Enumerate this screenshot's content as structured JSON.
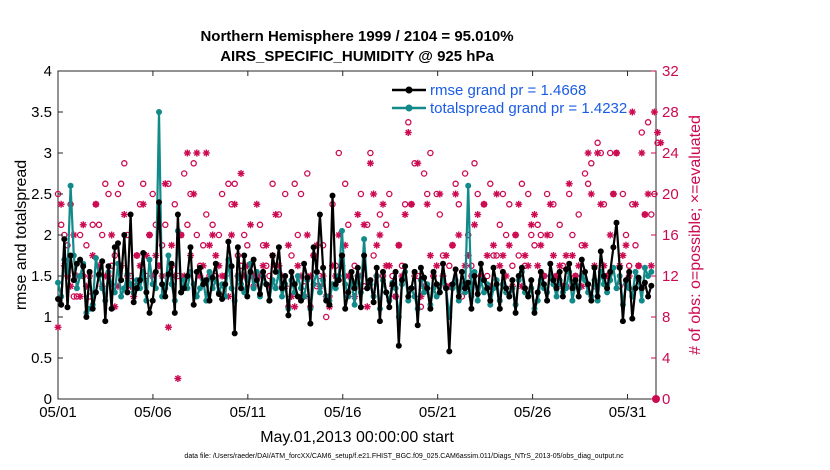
{
  "chart_data": {
    "type": "line",
    "title": "Northern Hemisphere 1999 / 2104 = 95.010%",
    "subtitle": "AIRS_SPECIFIC_HUMIDITY @ 925 hPa",
    "xlabel": "May.01,2013 00:00:00 start",
    "ylabel": "rmse and totalspread",
    "y2label": "# of obs: o=possible; ×=evaluated",
    "footnote": "data file: /Users/raeder/DAI/ATM_forcXX/CAM6_setup/f.e21.FHIST_BGC.f09_025.CAM6assim.011/Diags_NTrS_2013-05/obs_diag_output.nc",
    "xlim": [
      0,
      31.5
    ],
    "ylim": [
      0,
      4
    ],
    "y2lim": [
      0,
      32
    ],
    "x_ticks": [
      0,
      5,
      10,
      15,
      20,
      25,
      30
    ],
    "x_tick_labels": [
      "05/01",
      "05/06",
      "05/11",
      "05/16",
      "05/21",
      "05/26",
      "05/31"
    ],
    "y_ticks": [
      "0",
      "0.5",
      "1",
      "1.5",
      "2",
      "2.5",
      "3",
      "3.5",
      "4"
    ],
    "y2_ticks": [
      "0",
      "4",
      "8",
      "12",
      "16",
      "20",
      "24",
      "28",
      "32"
    ],
    "series": [
      {
        "name": "rmse grand pr = 1.4668",
        "color": "#000000",
        "values": [
          1.22,
          1.15,
          1.95,
          1.12,
          1.75,
          1.45,
          1.65,
          1.7,
          1.62,
          1.0,
          1.55,
          1.1,
          1.3,
          1.52,
          1.68,
          0.95,
          1.62,
          1.1,
          1.85,
          1.9,
          1.45,
          2.0,
          1.3,
          2.25,
          1.18,
          1.35,
          1.45,
          1.78,
          1.3,
          1.05,
          1.2,
          1.55,
          2.4,
          1.4,
          1.25,
          1.52,
          1.65,
          1.05,
          2.25,
          1.3,
          1.35,
          1.5,
          1.85,
          1.15,
          1.55,
          1.6,
          1.4,
          1.45,
          1.2,
          1.48,
          1.65,
          1.28,
          1.22,
          1.4,
          1.92,
          1.62,
          0.8,
          1.85,
          1.35,
          1.75,
          1.25,
          1.55,
          1.7,
          1.45,
          1.28,
          1.55,
          1.4,
          1.2,
          1.75,
          1.55,
          1.85,
          1.35,
          1.5,
          1.02,
          1.55,
          1.4,
          1.25,
          1.2,
          1.65,
          1.48,
          0.92,
          1.85,
          1.55,
          2.25,
          1.6,
          1.2,
          1.15,
          2.48,
          1.4,
          1.45,
          1.75,
          1.1,
          1.3,
          1.55,
          1.35,
          1.6,
          1.12,
          1.75,
          1.35,
          1.45,
          1.18,
          1.6,
          0.95,
          1.55,
          1.3,
          1.12,
          1.4,
          1.55,
          0.65,
          1.45,
          1.62,
          1.25,
          1.35,
          1.55,
          0.9,
          1.6,
          1.48,
          1.35,
          1.1,
          1.55,
          1.4,
          1.3,
          1.65,
          1.35,
          0.58,
          1.4,
          1.58,
          1.25,
          1.55,
          1.35,
          1.42,
          1.1,
          1.5,
          1.28,
          1.65,
          1.45,
          1.35,
          1.2,
          1.6,
          1.4,
          1.1,
          1.55,
          1.35,
          1.25,
          1.45,
          1.05,
          1.5,
          1.6,
          1.35,
          1.25,
          1.45,
          1.05,
          1.3,
          1.55,
          1.4,
          1.2,
          1.65,
          1.45,
          1.35,
          1.55,
          1.25,
          1.58,
          1.65,
          1.35,
          1.45,
          1.25,
          1.7,
          1.55,
          1.4,
          1.2,
          1.6,
          1.25,
          1.8,
          1.5,
          1.35,
          1.55,
          1.85,
          2.15,
          1.6,
          0.95,
          1.45,
          1.55,
          0.98,
          1.35,
          1.48,
          1.35,
          1.42,
          1.25,
          1.38
        ]
      },
      {
        "name": "totalspread grand pr = 1.4232",
        "color": "#138a8a",
        "values": [
          1.42,
          1.25,
          1.7,
          1.55,
          2.6,
          1.75,
          1.35,
          1.5,
          1.65,
          1.05,
          1.1,
          1.15,
          1.72,
          1.5,
          1.35,
          1.2,
          1.55,
          1.4,
          1.3,
          1.65,
          1.25,
          1.35,
          1.52,
          1.4,
          1.3,
          1.45,
          1.35,
          1.55,
          1.2,
          1.7,
          1.4,
          1.35,
          3.5,
          1.25,
          1.35,
          1.75,
          1.4,
          1.2,
          2.05,
          1.3,
          1.45,
          1.35,
          1.55,
          1.4,
          1.25,
          1.35,
          1.45,
          1.2,
          1.55,
          1.35,
          1.45,
          1.3,
          1.4,
          1.25,
          1.7,
          1.35,
          1.2,
          1.5,
          1.4,
          1.3,
          1.45,
          1.65,
          1.35,
          1.55,
          1.25,
          1.5,
          1.4,
          1.2,
          1.45,
          1.35,
          1.55,
          1.25,
          1.4,
          1.1,
          1.45,
          1.3,
          1.5,
          1.35,
          1.25,
          1.45,
          1.1,
          1.4,
          1.55,
          1.3,
          1.45,
          1.25,
          1.2,
          1.4,
          1.35,
          1.5,
          2.05,
          1.4,
          1.25,
          1.45,
          1.15,
          1.5,
          1.3,
          1.95,
          1.35,
          1.4,
          1.25,
          1.5,
          1.1,
          1.45,
          1.3,
          1.2,
          1.42,
          1.35,
          1.0,
          1.4,
          1.55,
          1.2,
          1.35,
          1.25,
          1.1,
          1.45,
          1.3,
          1.4,
          1.15,
          1.35,
          1.25,
          1.3,
          1.45,
          1.35,
          1.0,
          1.35,
          1.45,
          1.2,
          1.4,
          1.3,
          2.6,
          1.25,
          1.55,
          1.2,
          1.45,
          1.3,
          1.4,
          1.15,
          1.35,
          1.45,
          1.2,
          1.4,
          1.3,
          1.25,
          1.35,
          1.15,
          1.45,
          1.55,
          1.3,
          1.25,
          1.35,
          1.1,
          1.2,
          1.45,
          1.35,
          1.3,
          1.5,
          1.4,
          1.25,
          1.45,
          1.3,
          1.35,
          1.55,
          1.2,
          1.4,
          1.35,
          1.5,
          1.45,
          1.3,
          1.25,
          1.45,
          1.2,
          1.55,
          1.4,
          1.3,
          1.45,
          1.6,
          1.35,
          1.5,
          1.15,
          1.4,
          1.35,
          1.25,
          1.55,
          1.45,
          1.2,
          1.6,
          1.5,
          1.55
        ]
      }
    ],
    "obs_possible": [
      20,
      17,
      16,
      15,
      19,
      10,
      10,
      16,
      12,
      15,
      10,
      17,
      19,
      17,
      16,
      21,
      20,
      13,
      14,
      20,
      21,
      23,
      16,
      12,
      11,
      14,
      19,
      21,
      12,
      16,
      20,
      17,
      13,
      15,
      17,
      21,
      13,
      19,
      12,
      16,
      22,
      17,
      20,
      23,
      16,
      13,
      15,
      18,
      12,
      17,
      12,
      16,
      20,
      12,
      21,
      19,
      21,
      14,
      13,
      16,
      15,
      12,
      11,
      12,
      17,
      15,
      13,
      12,
      21,
      13,
      18,
      11,
      20,
      9,
      14,
      21,
      16,
      20,
      11,
      22,
      9,
      14,
      11,
      12,
      15,
      8,
      10,
      19,
      13,
      24,
      14,
      21,
      17,
      11,
      13,
      12,
      20,
      11,
      17,
      24,
      14,
      12,
      18,
      12,
      17,
      20,
      12,
      10,
      15,
      13,
      19,
      27,
      19,
      23,
      12,
      9,
      22,
      20,
      24,
      12,
      20,
      18,
      14,
      11,
      13,
      15,
      21,
      19,
      10,
      22,
      16,
      13,
      23,
      20,
      12,
      19,
      12,
      21,
      14,
      14,
      17,
      20,
      16,
      19,
      13,
      16,
      14,
      21,
      13,
      20,
      16,
      15,
      17,
      16,
      12,
      20,
      16,
      19,
      12,
      17,
      13,
      11,
      20,
      16,
      12,
      18,
      15,
      22,
      21,
      23,
      11,
      25,
      24,
      19,
      12,
      24,
      20,
      24,
      11,
      20,
      16,
      13,
      19,
      15,
      13,
      26,
      18,
      27,
      18,
      20,
      25
    ],
    "obs_evaluated": [
      7,
      19,
      13,
      12,
      11,
      16,
      12,
      10,
      17,
      11,
      12,
      14,
      19,
      13,
      11,
      12,
      12,
      16,
      9,
      11,
      13,
      18,
      12,
      11,
      10,
      14,
      13,
      19,
      14,
      16,
      12,
      14,
      13,
      12,
      21,
      7,
      15,
      12,
      2,
      16,
      12,
      24,
      14,
      20,
      24,
      12,
      13,
      24,
      15,
      16,
      14,
      13,
      12,
      12,
      10,
      16,
      19,
      12,
      22,
      12,
      13,
      17,
      12,
      19,
      12,
      13,
      15,
      11,
      14,
      18,
      13,
      12,
      11,
      15,
      10,
      9,
      13,
      12,
      10,
      16,
      12,
      14,
      15,
      11,
      12,
      10,
      9,
      13,
      12,
      16,
      13,
      15,
      12,
      11,
      10,
      18,
      12,
      17,
      9,
      23,
      20,
      15,
      16,
      19,
      13,
      13,
      11,
      10,
      15,
      12,
      18,
      26,
      19,
      12,
      23,
      10,
      11,
      19,
      14,
      12,
      13,
      20,
      12,
      14,
      11,
      15,
      20,
      16,
      11,
      13,
      14,
      12,
      17,
      18,
      12,
      19,
      14,
      11,
      15,
      20,
      13,
      14,
      12,
      15,
      11,
      16,
      19,
      11,
      14,
      13,
      17,
      18,
      13,
      15,
      12,
      16,
      19,
      14,
      12,
      13,
      11,
      14,
      21,
      14,
      12,
      13,
      11,
      15,
      24,
      20,
      13,
      24,
      19,
      13,
      12,
      16,
      20,
      24,
      13,
      14,
      15,
      12,
      28,
      19,
      13,
      24,
      18,
      20,
      13,
      28,
      26,
      25
    ],
    "legend": {
      "rmse_label": "rmse grand pr = 1.4668",
      "spread_label": "totalspread grand pr = 1.4232",
      "placement": "top-right"
    },
    "colors": {
      "rmse": "#000000",
      "spread": "#138a8a",
      "obs": "#cc0a52",
      "legend_text": "#1a5ce6"
    }
  }
}
